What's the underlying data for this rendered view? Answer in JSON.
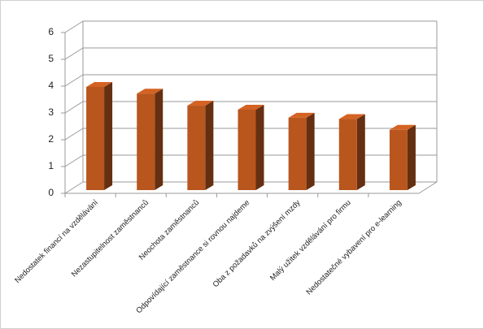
{
  "chart_data": {
    "type": "bar3d",
    "categories": [
      "Nedostatek financí na vzdělávání",
      "Nezastupitelnost zaměstnanců",
      "Neochota zaměstnanců",
      "Odpovídající zaměstnance si  rovnou najdeme",
      "Oba z požadavků na zvýšení mzdy",
      "Malý užitek vzdělávání pro firmu",
      "Nedostatečné vybavení pro e-learning"
    ],
    "values": [
      3.85,
      3.6,
      3.15,
      3.0,
      2.7,
      2.65,
      2.25
    ],
    "color": "#b8561e",
    "ylim": [
      0,
      6
    ],
    "yticks": [
      0,
      1,
      2,
      3,
      4,
      5,
      6
    ],
    "grid": true
  }
}
